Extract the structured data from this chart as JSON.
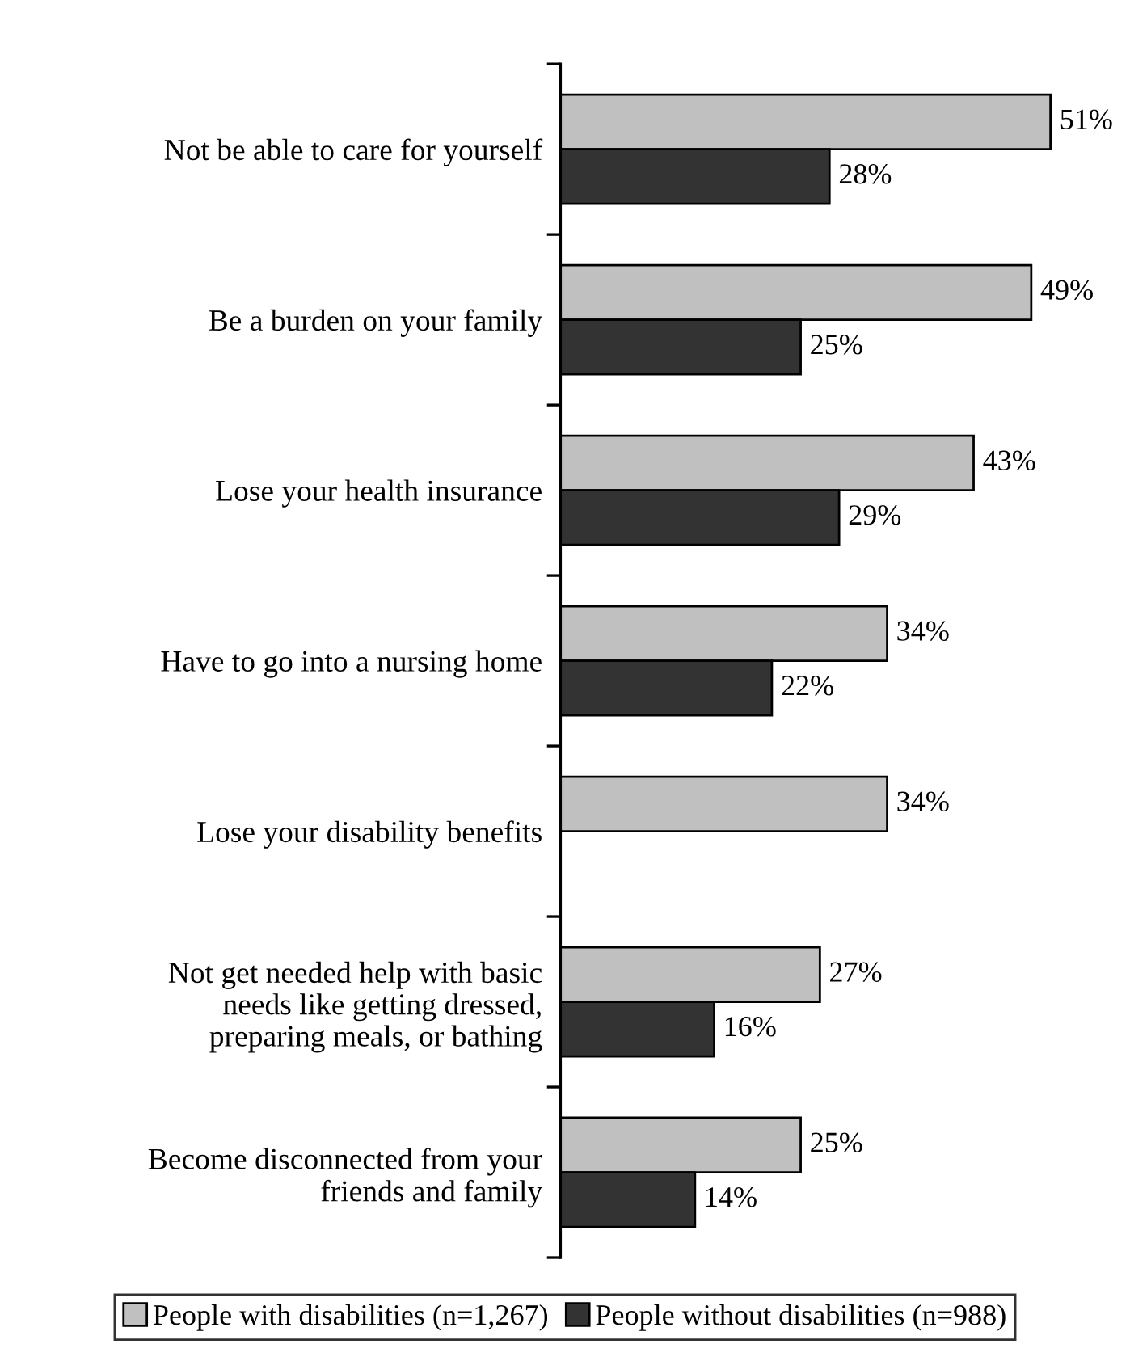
{
  "chart_data": {
    "type": "bar",
    "orientation": "horizontal",
    "categories": [
      "Not be able to care for yourself",
      "Be a burden on your family",
      "Lose your health insurance",
      "Have to go into a nursing home",
      "Lose your disability benefits",
      "Not get needed help with basic\nneeds like getting dressed,\npreparing meals, or bathing",
      "Become disconnected from your\nfriends and family"
    ],
    "series": [
      {
        "name": "People with disabilities (n=1,267)",
        "color": "#c0c0c0",
        "values": [
          51,
          49,
          43,
          34,
          34,
          27,
          25
        ],
        "value_labels": [
          "51%",
          "49%",
          "43%",
          "34%",
          "34%",
          "27%",
          "25%"
        ]
      },
      {
        "name": "People without disabilities (n=988)",
        "color": "#333333",
        "values": [
          28,
          25,
          29,
          22,
          null,
          16,
          14
        ],
        "value_labels": [
          "28%",
          "25%",
          "29%",
          "22%",
          null,
          "16%",
          "14%"
        ]
      }
    ],
    "legend": "bottom",
    "grid": false
  }
}
